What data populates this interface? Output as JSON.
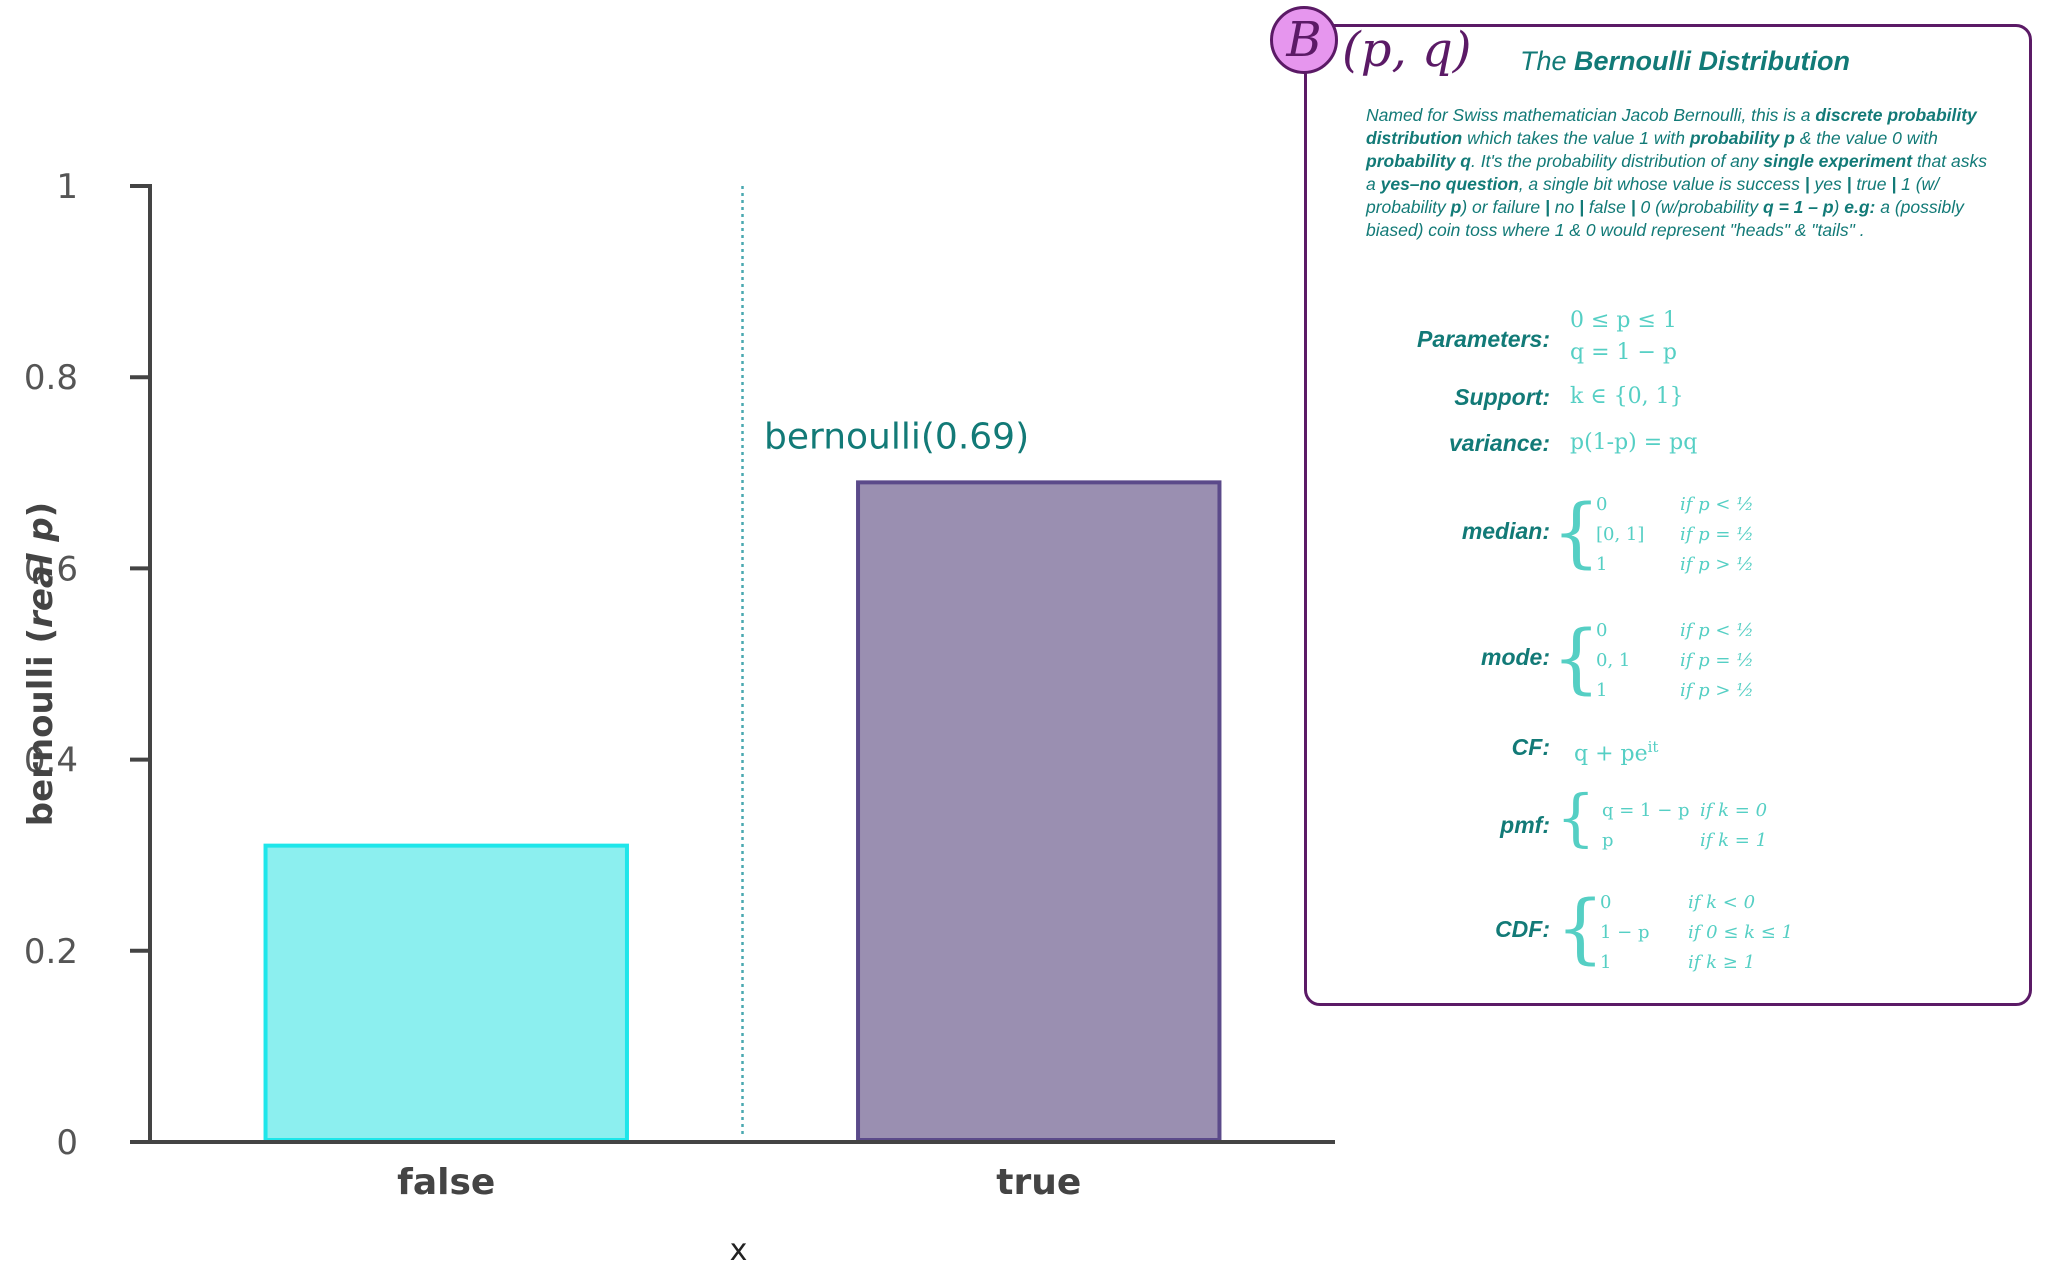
{
  "chart_data": {
    "type": "bar",
    "categories": [
      "false",
      "true"
    ],
    "values": [
      0.31,
      0.69
    ],
    "xlabel": "x",
    "ylabel": "bernoulli (real p)",
    "ylim": [
      0,
      1
    ],
    "yticks": [
      "0",
      "0.2",
      "0.4",
      "0.6",
      "0.8",
      "1"
    ],
    "annotation": "bernoulli(0.69)",
    "colors": {
      "false_fill": "#8cefef",
      "false_stroke": "#1ee6ea",
      "true_fill": "#9a8fb1",
      "true_stroke": "#5b4a8a",
      "axis": "#444444",
      "divider": "#4aa8b0"
    }
  },
  "card": {
    "badge": "B",
    "notation": "(p, q)",
    "heading_prefix": "The ",
    "heading_bold": "Bernoulli Distribution",
    "description": [
      {
        "t": "Named for Swiss mathematician Jacob Bernoulli, this is a ",
        "b": false
      },
      {
        "t": "discrete probability distribution",
        "b": true
      },
      {
        "t": "  which takes the value 1 with ",
        "b": false
      },
      {
        "t": "probability p",
        "b": true
      },
      {
        "t": " & the value 0 with ",
        "b": false
      },
      {
        "t": "probability q",
        "b": true
      },
      {
        "t": ".  It's the probability distribution of any ",
        "b": false
      },
      {
        "t": "single experiment",
        "b": true
      },
      {
        "t": " that asks a ",
        "b": false
      },
      {
        "t": "yes–no question",
        "b": true
      },
      {
        "t": ", a single bit whose value is  success ",
        "b": false
      },
      {
        "t": "|",
        "b": true
      },
      {
        "t": " yes ",
        "b": false
      },
      {
        "t": "|",
        "b": true
      },
      {
        "t": " true ",
        "b": false
      },
      {
        "t": "|",
        "b": true
      },
      {
        "t": " 1 (w/ probability ",
        "b": false
      },
      {
        "t": "p",
        "b": true
      },
      {
        "t": ") or failure ",
        "b": false
      },
      {
        "t": "|",
        "b": true
      },
      {
        "t": " no ",
        "b": false
      },
      {
        "t": "|",
        "b": true
      },
      {
        "t": " false ",
        "b": false
      },
      {
        "t": "|",
        "b": true
      },
      {
        "t": " 0 (w/probability ",
        "b": false
      },
      {
        "t": "q = 1 – p",
        "b": true
      },
      {
        "t": ")   ",
        "b": false
      },
      {
        "t": "e.g:",
        "b": true
      },
      {
        "t": " a (possibly biased) coin toss where 1 & 0 would represent \"heads\" & \"tails\" .",
        "b": false
      }
    ],
    "parameters_label": "Parameters:",
    "parameters_line1": "0 ≤ p ≤ 1",
    "parameters_line2": "q = 1 − p",
    "support_label": "Support:",
    "support_value": "k ∈ {0, 1}",
    "variance_label": "variance:",
    "variance_value": "p(1-p) = pq",
    "median_label": "median:",
    "median_cases": [
      {
        "v": "0",
        "c": "if p < ½"
      },
      {
        "v": "[0, 1]",
        "c": "if p = ½"
      },
      {
        "v": "1",
        "c": "if p > ½"
      }
    ],
    "mode_label": "mode:",
    "mode_cases": [
      {
        "v": "0",
        "c": "if p < ½"
      },
      {
        "v": "0, 1",
        "c": "if p = ½"
      },
      {
        "v": "1",
        "c": "if p > ½"
      }
    ],
    "cf_label": "CF:",
    "cf_value": "q + pe",
    "cf_exp": "it",
    "pmf_label": "pmf:",
    "pmf_cases": [
      {
        "v": "q = 1 − p",
        "c": "if k = 0"
      },
      {
        "v": "p",
        "c": "if k = 1"
      }
    ],
    "cdf_label": "CDF:",
    "cdf_cases": [
      {
        "v": "0",
        "c": "if k < 0"
      },
      {
        "v": "1 − p",
        "c": "if 0  ≤ k ≤ 1"
      },
      {
        "v": "1",
        "c": "if k ≥ 1"
      }
    ]
  }
}
